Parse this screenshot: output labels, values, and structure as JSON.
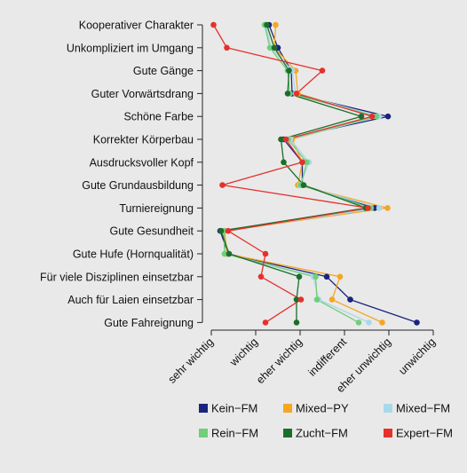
{
  "chart_data": {
    "type": "line",
    "orientation": "horizontal-profile",
    "title": "",
    "xlabel": "",
    "ylabel": "",
    "x_categories": [
      "sehr wichtig",
      "wichtig",
      "eher wichtig",
      "indifferent",
      "eher unwichtig",
      "unwichtig"
    ],
    "xlim": [
      1,
      6
    ],
    "categories": [
      "Kooperativer Charakter",
      "Unkompliziert im Umgang",
      "Gute Gänge",
      "Guter Vorwärtsdrang",
      "Schöne Farbe",
      "Korrekter Körperbau",
      "Ausdrucksvoller Kopf",
      "Gute Grundausbildung",
      "Turniereignung",
      "Gute Gesundheit",
      "Gute Hufe (Hornqualität)",
      "Für viele Disziplinen einsetzbar",
      "Auch für Laien einsetzbar",
      "Gute Fahreignung"
    ],
    "grid": false,
    "legend_position": "bottom",
    "series": [
      {
        "name": "Kein−FM",
        "color": "#1a237e",
        "values": [
          2.3,
          2.5,
          2.8,
          2.82,
          4.98,
          2.63,
          3.05,
          3.05,
          4.68,
          1.2,
          1.38,
          3.6,
          4.13,
          5.63
        ]
      },
      {
        "name": "Mixed−PY",
        "color": "#f5a623",
        "values": [
          2.45,
          2.42,
          2.9,
          2.95,
          4.72,
          2.82,
          3.05,
          2.95,
          4.97,
          1.3,
          1.35,
          3.9,
          3.72,
          4.85
        ]
      },
      {
        "name": "Mixed−FM",
        "color": "#a9d8ea",
        "values": [
          2.22,
          2.35,
          2.82,
          2.9,
          4.78,
          2.78,
          3.2,
          3.0,
          4.78,
          1.28,
          1.3,
          3.3,
          3.42,
          4.55
        ]
      },
      {
        "name": "Rein−FM",
        "color": "#6fcf7a",
        "values": [
          2.2,
          2.32,
          2.72,
          2.77,
          4.72,
          2.73,
          3.15,
          3.02,
          4.6,
          1.28,
          1.3,
          3.35,
          3.38,
          4.32
        ]
      },
      {
        "name": "Zucht−FM",
        "color": "#1b6e2a",
        "values": [
          2.25,
          2.42,
          2.75,
          2.72,
          4.38,
          2.57,
          2.63,
          3.08,
          4.48,
          1.22,
          1.4,
          2.98,
          2.92,
          2.92
        ]
      },
      {
        "name": "Expert−FM",
        "color": "#e5312c",
        "values": [
          1.05,
          1.35,
          3.5,
          2.92,
          4.62,
          2.68,
          3.05,
          1.25,
          4.53,
          1.38,
          2.22,
          2.12,
          3.02,
          2.22
        ]
      }
    ]
  }
}
